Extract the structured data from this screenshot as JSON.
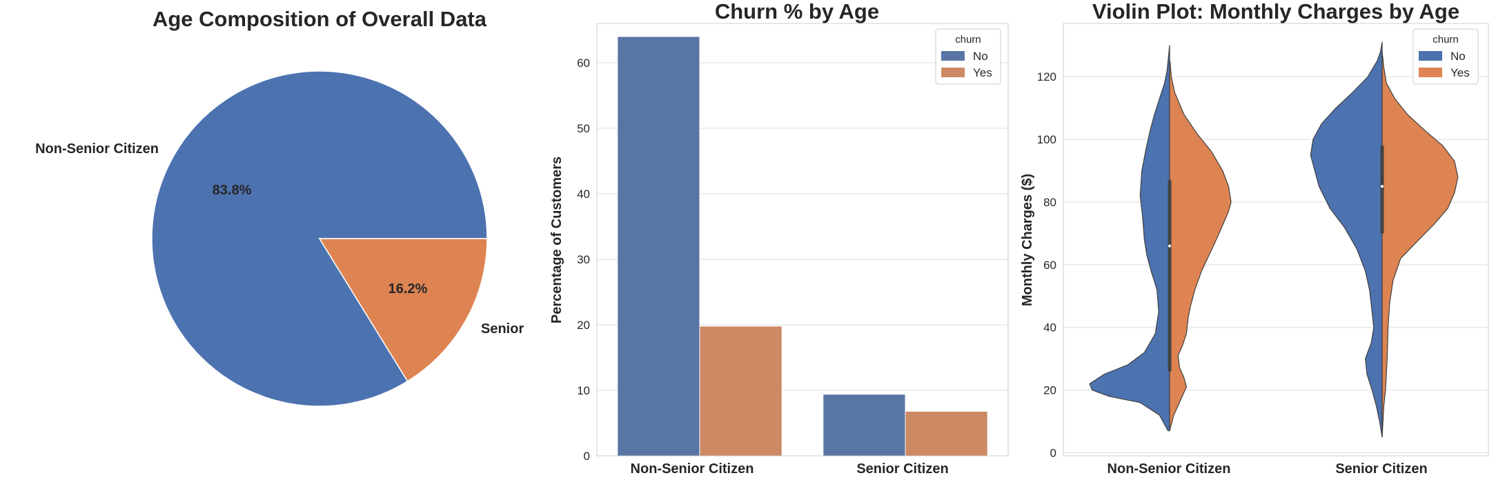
{
  "colors": {
    "no": "#4c72b0",
    "yes": "#dd8452",
    "no_bar": "#5975a4",
    "yes_bar": "#cc8963"
  },
  "chart_data": [
    {
      "type": "pie",
      "title": "Age Composition of Overall Data",
      "slices": [
        {
          "label": "Non-Senior Citizen",
          "value": 83.8,
          "pct_text": "83.8%",
          "color": "#4c72b0"
        },
        {
          "label": "Senior",
          "value": 16.2,
          "pct_text": "16.2%",
          "color": "#dd8452"
        }
      ]
    },
    {
      "type": "bar",
      "title": "Churn % by Age",
      "xlabel": "",
      "ylabel": "Percentage of Customers",
      "categories": [
        "Non-Senior Citizen",
        "Senior Citizen"
      ],
      "series": [
        {
          "name": "No",
          "values": [
            64.0,
            9.4
          ]
        },
        {
          "name": "Yes",
          "values": [
            19.8,
            6.8
          ]
        }
      ],
      "ylim": [
        0,
        66
      ],
      "yticks": [
        0,
        10,
        20,
        30,
        40,
        50,
        60
      ],
      "legend": {
        "title": "churn",
        "entries": [
          "No",
          "Yes"
        ],
        "placement": "top-right"
      },
      "grid": true
    },
    {
      "type": "violin",
      "title": "Violin Plot: Monthly Charges by Age",
      "xlabel": "",
      "ylabel": "Monthly Charges ($)",
      "categories": [
        "Non-Senior Citizen",
        "Senior Citizen"
      ],
      "ylim": [
        -1,
        137
      ],
      "yticks": [
        0,
        20,
        40,
        60,
        80,
        100,
        120
      ],
      "legend": {
        "title": "churn",
        "entries": [
          "No",
          "Yes"
        ],
        "placement": "top-right"
      },
      "grid": true,
      "violins": [
        {
          "category": "Non-Senior Citizen",
          "no": [
            [
              7,
              0.02
            ],
            [
              12,
              0.12
            ],
            [
              16,
              0.35
            ],
            [
              18,
              0.72
            ],
            [
              20,
              0.92
            ],
            [
              22,
              0.95
            ],
            [
              25,
              0.78
            ],
            [
              28,
              0.5
            ],
            [
              32,
              0.3
            ],
            [
              38,
              0.17
            ],
            [
              45,
              0.13
            ],
            [
              52,
              0.15
            ],
            [
              58,
              0.22
            ],
            [
              63,
              0.27
            ],
            [
              68,
              0.3
            ],
            [
              75,
              0.32
            ],
            [
              82,
              0.35
            ],
            [
              90,
              0.33
            ],
            [
              97,
              0.28
            ],
            [
              103,
              0.23
            ],
            [
              108,
              0.18
            ],
            [
              113,
              0.12
            ],
            [
              118,
              0.06
            ],
            [
              122,
              0.03
            ],
            [
              126,
              0.015
            ],
            [
              130,
              0.0
            ]
          ],
          "yes": [
            [
              7,
              0.0
            ],
            [
              12,
              0.05
            ],
            [
              18,
              0.15
            ],
            [
              21,
              0.2
            ],
            [
              24,
              0.17
            ],
            [
              27,
              0.12
            ],
            [
              31,
              0.1
            ],
            [
              34,
              0.15
            ],
            [
              38,
              0.2
            ],
            [
              43,
              0.22
            ],
            [
              47,
              0.25
            ],
            [
              52,
              0.3
            ],
            [
              58,
              0.38
            ],
            [
              62,
              0.45
            ],
            [
              66,
              0.52
            ],
            [
              72,
              0.62
            ],
            [
              77,
              0.7
            ],
            [
              80,
              0.73
            ],
            [
              85,
              0.7
            ],
            [
              90,
              0.63
            ],
            [
              96,
              0.5
            ],
            [
              102,
              0.32
            ],
            [
              108,
              0.17
            ],
            [
              115,
              0.06
            ],
            [
              120,
              0.02
            ],
            [
              125,
              0.005
            ]
          ],
          "box": {
            "q1": 26,
            "median": 66,
            "q3": 87
          }
        },
        {
          "category": "Senior Citizen",
          "no": [
            [
              5,
              0.0
            ],
            [
              10,
              0.03
            ],
            [
              15,
              0.07
            ],
            [
              20,
              0.12
            ],
            [
              25,
              0.18
            ],
            [
              30,
              0.2
            ],
            [
              35,
              0.13
            ],
            [
              40,
              0.1
            ],
            [
              45,
              0.12
            ],
            [
              52,
              0.15
            ],
            [
              58,
              0.2
            ],
            [
              65,
              0.3
            ],
            [
              72,
              0.45
            ],
            [
              78,
              0.62
            ],
            [
              85,
              0.75
            ],
            [
              90,
              0.8
            ],
            [
              95,
              0.85
            ],
            [
              100,
              0.82
            ],
            [
              105,
              0.72
            ],
            [
              110,
              0.55
            ],
            [
              115,
              0.35
            ],
            [
              120,
              0.17
            ],
            [
              125,
              0.06
            ],
            [
              128,
              0.02
            ],
            [
              131,
              0.0
            ]
          ],
          "yes": [
            [
              5,
              0.0
            ],
            [
              10,
              0.01
            ],
            [
              15,
              0.02
            ],
            [
              20,
              0.04
            ],
            [
              30,
              0.06
            ],
            [
              40,
              0.07
            ],
            [
              48,
              0.09
            ],
            [
              55,
              0.13
            ],
            [
              62,
              0.22
            ],
            [
              67,
              0.4
            ],
            [
              73,
              0.62
            ],
            [
              78,
              0.78
            ],
            [
              83,
              0.86
            ],
            [
              88,
              0.9
            ],
            [
              93,
              0.86
            ],
            [
              98,
              0.72
            ],
            [
              103,
              0.5
            ],
            [
              108,
              0.3
            ],
            [
              113,
              0.15
            ],
            [
              118,
              0.05
            ],
            [
              123,
              0.02
            ],
            [
              128,
              0.0
            ]
          ],
          "box": {
            "q1": 70,
            "median": 85,
            "q3": 98
          }
        }
      ]
    }
  ]
}
